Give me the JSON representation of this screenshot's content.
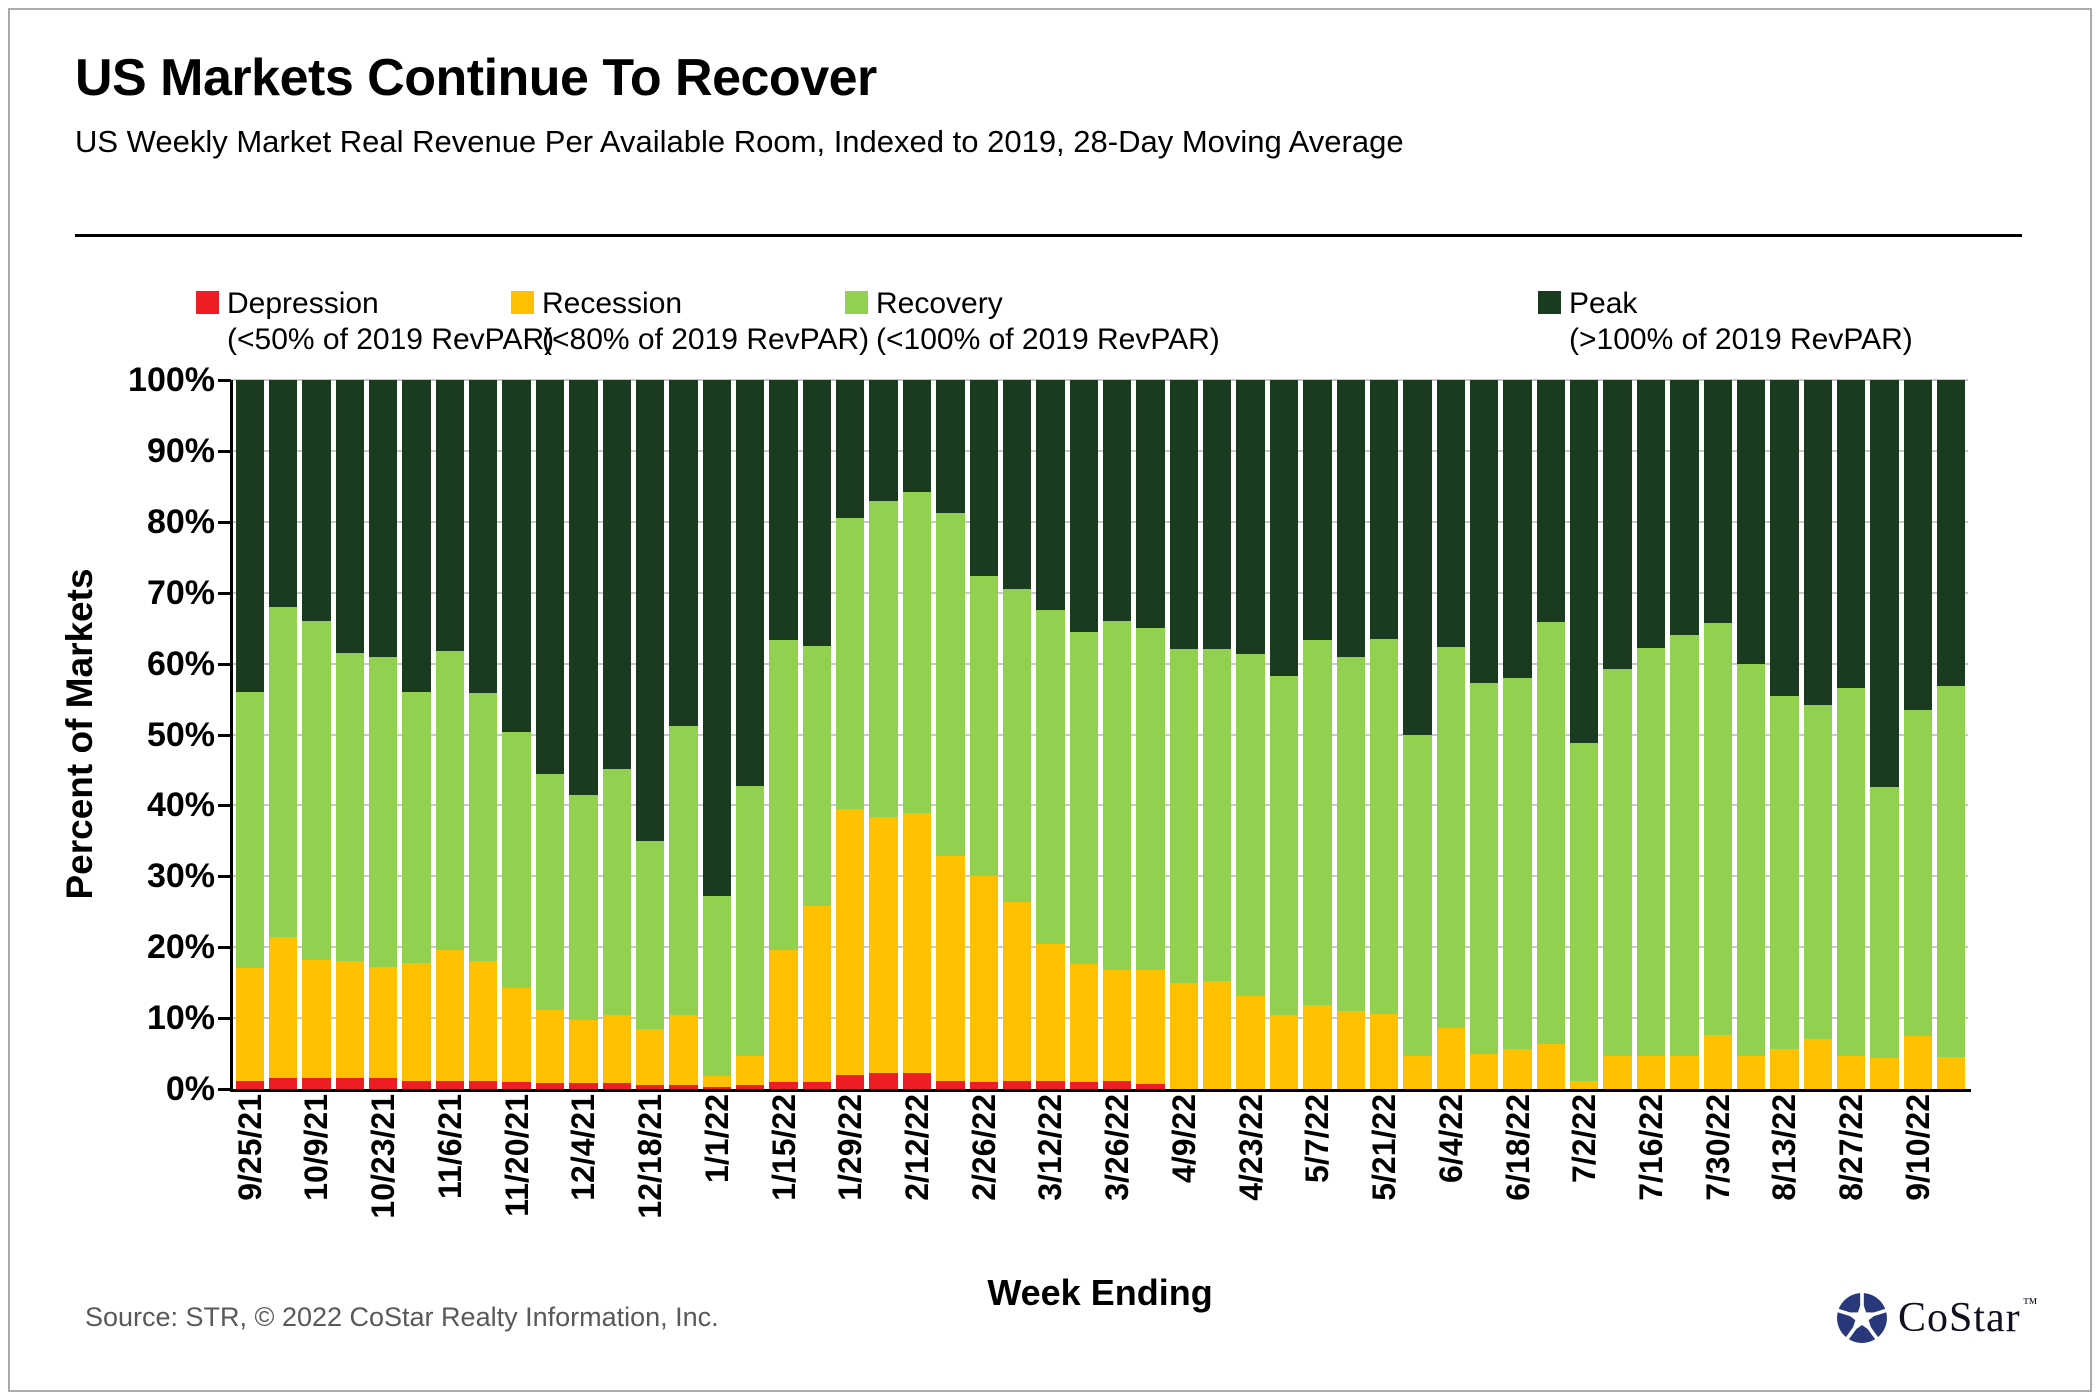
{
  "header": {
    "title": "US Markets Continue To Recover",
    "subtitle": "US Weekly Market Real Revenue Per Available Room, Indexed to 2019, 28-Day Moving Average"
  },
  "legend": [
    {
      "label": "Depression",
      "qualifier": "(<50% of 2019 RevPAR)",
      "color": "#EE1C25"
    },
    {
      "label": "Recession",
      "qualifier": "(<80% of 2019 RevPAR)",
      "color": "#FFC000"
    },
    {
      "label": "Recovery",
      "qualifier": "(<100% of 2019 RevPAR)",
      "color": "#92D050"
    },
    {
      "label": "Peak",
      "qualifier": "(>100% of 2019 RevPAR)",
      "color": "#1A3B20"
    }
  ],
  "chart_data": {
    "type": "bar",
    "stacked": true,
    "grid": true,
    "xlabel": "Week Ending",
    "ylabel": "Percent of Markets",
    "ylim": [
      0,
      100
    ],
    "ytick_labels": [
      "0%",
      "10%",
      "20%",
      "30%",
      "40%",
      "50%",
      "60%",
      "70%",
      "80%",
      "90%",
      "100%"
    ],
    "xtick_labels_shown": [
      "9/25/21",
      "10/9/21",
      "10/23/21",
      "11/6/21",
      "11/20/21",
      "12/4/21",
      "12/18/21",
      "1/1/22",
      "1/15/22",
      "1/29/22",
      "2/12/22",
      "2/26/22",
      "3/12/22",
      "3/26/22",
      "4/9/22",
      "4/23/22",
      "5/7/22",
      "5/21/22",
      "6/4/22",
      "6/18/22",
      "7/2/22",
      "7/16/22",
      "7/30/22",
      "8/13/22",
      "8/27/22",
      "9/10/22"
    ],
    "categories": [
      "9/25/21",
      "10/2/21",
      "10/9/21",
      "10/16/21",
      "10/23/21",
      "10/30/21",
      "11/6/21",
      "11/13/21",
      "11/20/21",
      "11/27/21",
      "12/4/21",
      "12/11/21",
      "12/18/21",
      "12/25/21",
      "1/1/22",
      "1/8/22",
      "1/15/22",
      "1/22/22",
      "1/29/22",
      "2/5/22",
      "2/12/22",
      "2/19/22",
      "2/26/22",
      "3/5/22",
      "3/12/22",
      "3/19/22",
      "3/26/22",
      "4/2/22",
      "4/9/22",
      "4/16/22",
      "4/23/22",
      "4/30/22",
      "5/7/22",
      "5/14/22",
      "5/21/22",
      "5/28/22",
      "6/4/22",
      "6/11/22",
      "6/18/22",
      "6/25/22",
      "7/2/22",
      "7/9/22",
      "7/16/22",
      "7/23/22",
      "7/30/22",
      "8/6/22",
      "8/13/22",
      "8/20/22",
      "8/27/22",
      "9/3/22",
      "9/10/22",
      "9/17/22"
    ],
    "series": [
      {
        "id": "depression",
        "name": "Depression (<50% of 2019 RevPAR)",
        "color": "#EE1C25",
        "values": [
          1.2,
          1.5,
          1.5,
          1.5,
          1.5,
          1.2,
          1.2,
          1.2,
          1.0,
          0.9,
          0.8,
          0.8,
          0.5,
          0.5,
          0.3,
          0.5,
          1.0,
          1.0,
          2.0,
          2.2,
          2.2,
          1.2,
          1.0,
          1.2,
          1.2,
          1.0,
          1.2,
          0.7,
          0,
          0,
          0,
          0,
          0,
          0,
          0,
          0,
          0,
          0,
          0,
          0,
          0,
          0,
          0,
          0,
          0,
          0,
          0,
          0,
          0,
          0,
          0,
          0
        ]
      },
      {
        "id": "recession",
        "name": "Recession (<80% of 2019 RevPAR)",
        "color": "#FFC000",
        "values": [
          15.8,
          20.0,
          16.7,
          16.5,
          15.7,
          16.6,
          18.4,
          16.8,
          13.2,
          10.3,
          9.0,
          9.7,
          7.9,
          10.0,
          1.5,
          4.1,
          18.6,
          24.8,
          37.5,
          36.1,
          36.8,
          31.6,
          29.0,
          25.2,
          19.3,
          16.6,
          15.6,
          16.1,
          15.0,
          15.3,
          13.1,
          10.4,
          11.9,
          11.0,
          10.6,
          4.6,
          8.6,
          4.9,
          5.7,
          6.4,
          1.1,
          4.7,
          4.6,
          4.7,
          7.6,
          4.6,
          5.7,
          7.1,
          4.7,
          4.4,
          7.5,
          4.5
        ]
      },
      {
        "id": "recovery",
        "name": "Recovery (<100% of 2019 RevPAR)",
        "color": "#92D050",
        "values": [
          39.0,
          46.5,
          47.8,
          43.5,
          43.8,
          38.2,
          42.2,
          37.8,
          36.2,
          33.2,
          31.7,
          34.7,
          26.6,
          40.7,
          25.4,
          38.2,
          43.7,
          36.7,
          41.1,
          44.7,
          45.2,
          48.4,
          42.4,
          44.1,
          47.0,
          46.9,
          49.2,
          48.2,
          47.0,
          46.7,
          48.2,
          47.8,
          51.4,
          50.0,
          52.9,
          45.4,
          53.7,
          52.3,
          52.3,
          59.4,
          47.7,
          54.6,
          57.6,
          59.3,
          58.1,
          55.3,
          49.8,
          47.1,
          51.9,
          38.2,
          46.0,
          52.3
        ]
      },
      {
        "id": "peak",
        "name": "Peak (>100% of 2019 RevPAR)",
        "color": "#1A3B20",
        "values": [
          44.0,
          32.0,
          34.0,
          38.5,
          39.0,
          44.0,
          38.2,
          44.2,
          49.6,
          55.6,
          58.5,
          54.8,
          65.0,
          48.8,
          72.8,
          57.2,
          36.7,
          37.5,
          19.4,
          17.0,
          15.8,
          18.8,
          27.6,
          29.5,
          32.5,
          35.5,
          34.0,
          35.0,
          38.0,
          38.0,
          38.7,
          41.8,
          36.7,
          39.0,
          36.5,
          50.0,
          37.7,
          42.8,
          42.0,
          34.2,
          51.2,
          40.7,
          37.8,
          36.0,
          34.3,
          40.1,
          44.5,
          45.8,
          43.4,
          57.4,
          46.5,
          43.2
        ]
      }
    ]
  },
  "footer": {
    "source": "Source: STR, © 2022  CoStar Realty Information, Inc.",
    "logo_text": "CoStar",
    "logo_tm": "™"
  }
}
